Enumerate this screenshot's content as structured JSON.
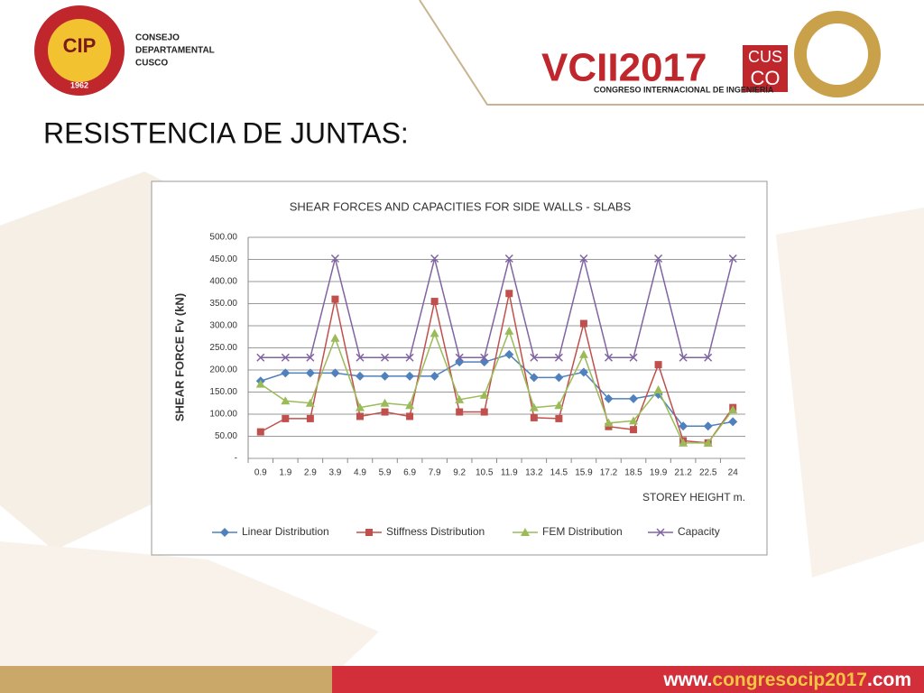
{
  "header": {
    "org_lines": [
      "CONSEJO",
      "DEPARTAMENTAL",
      "CUSCO"
    ],
    "logo_initials": "CIP",
    "logo_year": "1962",
    "event_mark": "VCII2017",
    "event_city": [
      "CUS",
      "CO"
    ],
    "event_name": "CONGRESO INTERNACIONAL DE INGENIERÍA"
  },
  "slide_title": "RESISTENCIA DE JUNTAS:",
  "footer": {
    "url_parts": [
      "www.",
      "congresocip2017",
      ".com"
    ]
  },
  "chart_data": {
    "type": "line",
    "title": "SHEAR FORCES AND CAPACITIES FOR SIDE WALLS - SLABS",
    "y_label": "SHEAR FORCE Fv (kN)",
    "x_label": "STOREY HEIGHT  m.",
    "categories": [
      "0.9",
      "1.9",
      "2.9",
      "3.9",
      "4.9",
      "5.9",
      "6.9",
      "7.9",
      "9.2",
      "10.5",
      "11.9",
      "13.2",
      "14.5",
      "15.9",
      "17.2",
      "18.5",
      "19.9",
      "21.2",
      "22.5",
      "24"
    ],
    "series": [
      {
        "name": "Linear Distribution",
        "color": "#4f81bd",
        "marker": "diamond",
        "values": [
          175,
          193,
          193,
          193,
          186,
          186,
          186,
          186,
          218,
          218,
          235,
          183,
          183,
          195,
          135,
          135,
          145,
          73,
          73,
          83
        ]
      },
      {
        "name": "Stiffness Distribution",
        "color": "#c0504d",
        "marker": "square",
        "values": [
          60,
          90,
          90,
          360,
          95,
          105,
          95,
          355,
          105,
          105,
          373,
          92,
          90,
          305,
          72,
          65,
          212,
          40,
          35,
          115
        ]
      },
      {
        "name": "FEM Distribution",
        "color": "#9bbb59",
        "marker": "triangle",
        "values": [
          168,
          130,
          125,
          272,
          115,
          125,
          120,
          283,
          133,
          143,
          288,
          115,
          120,
          235,
          80,
          85,
          155,
          35,
          35,
          110
        ]
      },
      {
        "name": "Capacity",
        "color": "#8064a2",
        "marker": "x",
        "values": [
          228,
          228,
          228,
          452,
          228,
          228,
          228,
          452,
          228,
          228,
          452,
          228,
          228,
          452,
          228,
          228,
          452,
          228,
          228,
          452
        ]
      }
    ],
    "ylim": [
      0,
      500
    ],
    "yticks": [
      {
        "value": 0,
        "label": "-"
      },
      {
        "value": 50,
        "label": "50.00"
      },
      {
        "value": 100,
        "label": "100.00"
      },
      {
        "value": 150,
        "label": "150.00"
      },
      {
        "value": 200,
        "label": "200.00"
      },
      {
        "value": 250,
        "label": "250.00"
      },
      {
        "value": 300,
        "label": "300.00"
      },
      {
        "value": 350,
        "label": "350.00"
      },
      {
        "value": 400,
        "label": "400.00"
      },
      {
        "value": 450,
        "label": "450.00"
      },
      {
        "value": 500,
        "label": "500.00"
      }
    ],
    "grid": true,
    "legend": "bottom"
  }
}
